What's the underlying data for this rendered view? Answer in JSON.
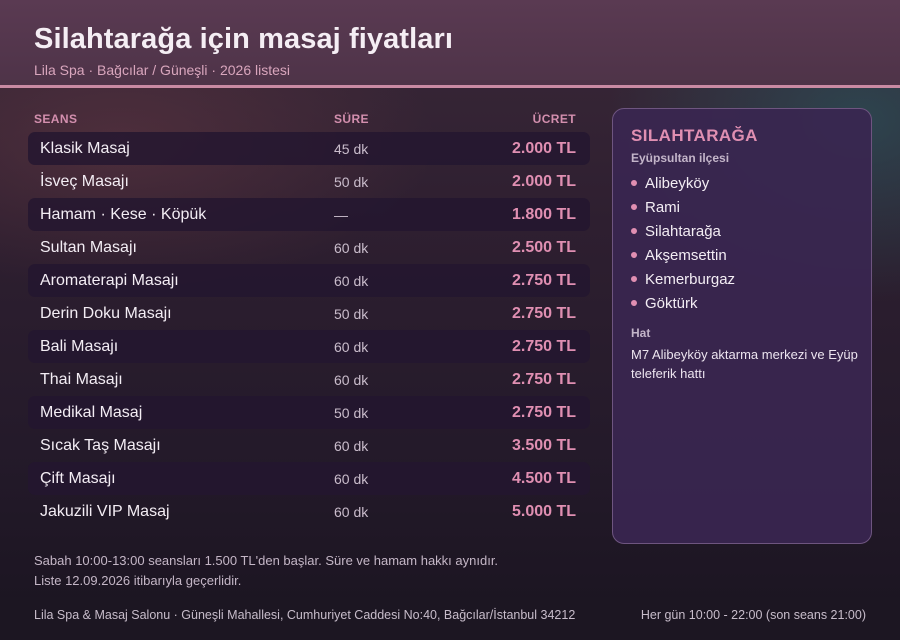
{
  "header": {
    "title": "Silahtarağa için masaj fiyatları",
    "subtitle": "Lila Spa · Bağcılar / Güneşli · 2026 listesi"
  },
  "table": {
    "columns": {
      "seans": "SEANS",
      "sure": "SÜRE",
      "ucret": "ÜCRET"
    },
    "rows": [
      {
        "name": "Klasik Masaj",
        "duration": "45 dk",
        "price": "2.000 TL"
      },
      {
        "name": "İsveç Masajı",
        "duration": "50 dk",
        "price": "2.000 TL"
      },
      {
        "name": "Hamam · Kese · Köpük",
        "duration": "—",
        "price": "1.800 TL"
      },
      {
        "name": "Sultan Masajı",
        "duration": "60 dk",
        "price": "2.500 TL"
      },
      {
        "name": "Aromaterapi Masajı",
        "duration": "60 dk",
        "price": "2.750 TL"
      },
      {
        "name": "Derin Doku Masajı",
        "duration": "50 dk",
        "price": "2.750 TL"
      },
      {
        "name": "Bali Masajı",
        "duration": "60 dk",
        "price": "2.750 TL"
      },
      {
        "name": "Thai Masajı",
        "duration": "60 dk",
        "price": "2.750 TL"
      },
      {
        "name": "Medikal Masaj",
        "duration": "50 dk",
        "price": "2.750 TL"
      },
      {
        "name": "Sıcak Taş Masajı",
        "duration": "60 dk",
        "price": "3.500 TL"
      },
      {
        "name": "Çift Masajı",
        "duration": "60 dk",
        "price": "4.500 TL"
      },
      {
        "name": "Jakuzili VIP Masaj",
        "duration": "60 dk",
        "price": "5.000 TL"
      }
    ]
  },
  "notes": {
    "line1": "Sabah 10:00-13:00 seansları 1.500 TL'den başlar. Süre ve hamam hakkı aynıdır.",
    "line2": "Liste 12.09.2026 itibarıyla geçerlidir."
  },
  "side": {
    "title": "SILAHTARAĞA",
    "subtitle": "Eyüpsultan ilçesi",
    "neighborhoods": [
      "Alibeyköy",
      "Rami",
      "Silahtarağa",
      "Akşemsettin",
      "Kemerburgaz",
      "Göktürk"
    ],
    "hat_label": "Hat",
    "hat_text": "M7 Alibeyköy aktarma merkezi ve Eyüp teleferik hattı"
  },
  "footer": {
    "address": "Lila Spa & Masaj Salonu · Güneşli Mahallesi, Cumhuriyet Caddesi No:40, Bağcılar/İstanbul 34212",
    "hours": "Her gün 10:00 - 22:00 (son seans 21:00)"
  },
  "colors": {
    "accent": "#e08fb2",
    "header_bg": "#553850",
    "header_rule": "#c98aa3",
    "panel_bg": "#3a2650"
  }
}
